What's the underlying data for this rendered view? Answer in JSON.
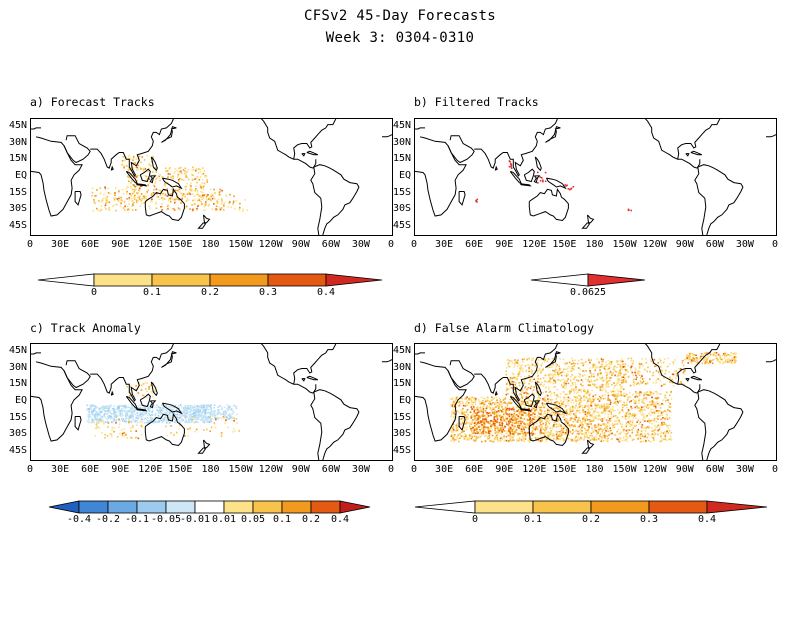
{
  "header": {
    "title": "CFSv2 45-Day Forecasts",
    "subtitle": "Week 3: 0304-0310"
  },
  "axes": {
    "lat_labels": [
      "45N",
      "30N",
      "15N",
      "EQ",
      "15S",
      "30S",
      "45S"
    ],
    "lon_labels": [
      "0",
      "30E",
      "60E",
      "90E",
      "120E",
      "150E",
      "180",
      "150W",
      "120W",
      "90W",
      "60W",
      "30W",
      "0"
    ]
  },
  "panels": [
    {
      "title": "a) Forecast Tracks",
      "colorbar": {
        "labels": [
          "0",
          "0.1",
          "0.2",
          "0.3",
          "0.4"
        ],
        "colors": [
          "#ffffff",
          "#fde28a",
          "#f7c34a",
          "#f29a1e",
          "#e55a12",
          "#d02a20"
        ]
      }
    },
    {
      "title": "b) Filtered Tracks",
      "colorbar": {
        "labels": [
          "0.0625"
        ],
        "colors": [
          "#ffffff",
          "#e03030"
        ]
      }
    },
    {
      "title": "c) Track Anomaly",
      "colorbar": {
        "labels": [
          "-0.4",
          "-0.2",
          "-0.1",
          "-0.05",
          "-0.01",
          "0.01",
          "0.05",
          "0.1",
          "0.2",
          "0.4"
        ],
        "colors": [
          "#1e5fbf",
          "#3f86d6",
          "#6aa9e3",
          "#9ccbef",
          "#cde7f7",
          "#ffffff",
          "#fde28a",
          "#f7c34a",
          "#f29a1e",
          "#e55a12",
          "#c21e1a"
        ]
      }
    },
    {
      "title": "d) False Alarm Climatology",
      "colorbar": {
        "labels": [
          "0",
          "0.1",
          "0.2",
          "0.3",
          "0.4"
        ],
        "colors": [
          "#ffffff",
          "#fde28a",
          "#f7c34a",
          "#f29a1e",
          "#e55a12",
          "#d02a20"
        ]
      }
    }
  ]
}
